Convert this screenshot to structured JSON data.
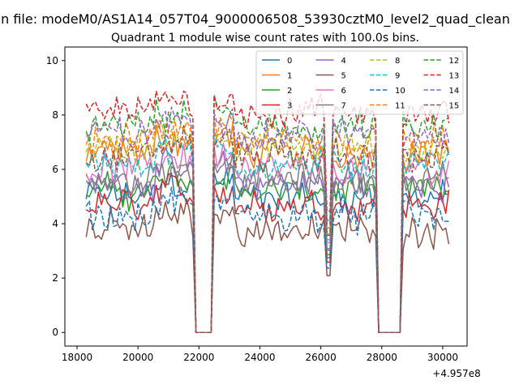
{
  "chart_data": {
    "type": "line",
    "suptitle": "n file: modeM0/AS1A14_057T04_9000006508_53930cztM0_level2_quad_clean",
    "title": "Quadrant 1 module wise count rates with 100.0s bins.",
    "xlabel": "",
    "ylabel": "",
    "x_offset_label": "+4.957e8",
    "xlim": [
      17600,
      30800
    ],
    "ylim": [
      -0.5,
      10.5
    ],
    "xticks": [
      "18000",
      "20000",
      "22000",
      "24000",
      "26000",
      "28000",
      "30000"
    ],
    "yticks": [
      "0",
      "2",
      "4",
      "6",
      "8",
      "10"
    ],
    "grid": false,
    "legend_position": "top-right",
    "legend_columns": 4,
    "time_range": [
      18300,
      30200
    ],
    "bin_seconds": 100,
    "gaps": [
      [
        21850,
        22400
      ],
      [
        27850,
        28650
      ]
    ],
    "series": [
      {
        "name": "0",
        "color": "#1f77b4",
        "style": "solid",
        "level": 5.0
      },
      {
        "name": "1",
        "color": "#ff7f0e",
        "style": "solid",
        "level": 6.6
      },
      {
        "name": "2",
        "color": "#2ca02c",
        "style": "solid",
        "level": 5.2
      },
      {
        "name": "3",
        "color": "#d62728",
        "style": "solid",
        "level": 4.7
      },
      {
        "name": "4",
        "color": "#9467bd",
        "style": "solid",
        "level": 5.5
      },
      {
        "name": "5",
        "color": "#8c564b",
        "style": "solid",
        "level": 3.8
      },
      {
        "name": "6",
        "color": "#e377c2",
        "style": "solid",
        "level": 6.0
      },
      {
        "name": "7",
        "color": "#7f7f7f",
        "style": "solid",
        "level": 5.6
      },
      {
        "name": "8",
        "color": "#bcbd22",
        "style": "dashed",
        "level": 6.8
      },
      {
        "name": "9",
        "color": "#17becf",
        "style": "dashed",
        "level": 6.2
      },
      {
        "name": "10",
        "color": "#1f77b4",
        "style": "dashed",
        "level": 4.3
      },
      {
        "name": "11",
        "color": "#ff7f0e",
        "style": "dashed",
        "level": 7.0
      },
      {
        "name": "12",
        "color": "#2ca02c",
        "style": "dashed",
        "level": 7.5
      },
      {
        "name": "13",
        "color": "#d62728",
        "style": "dashed",
        "level": 8.1
      },
      {
        "name": "14",
        "color": "#9467bd",
        "style": "dashed",
        "level": 7.3
      },
      {
        "name": "15",
        "color": "#8c564b",
        "style": "dashed",
        "level": 6.5
      }
    ]
  }
}
